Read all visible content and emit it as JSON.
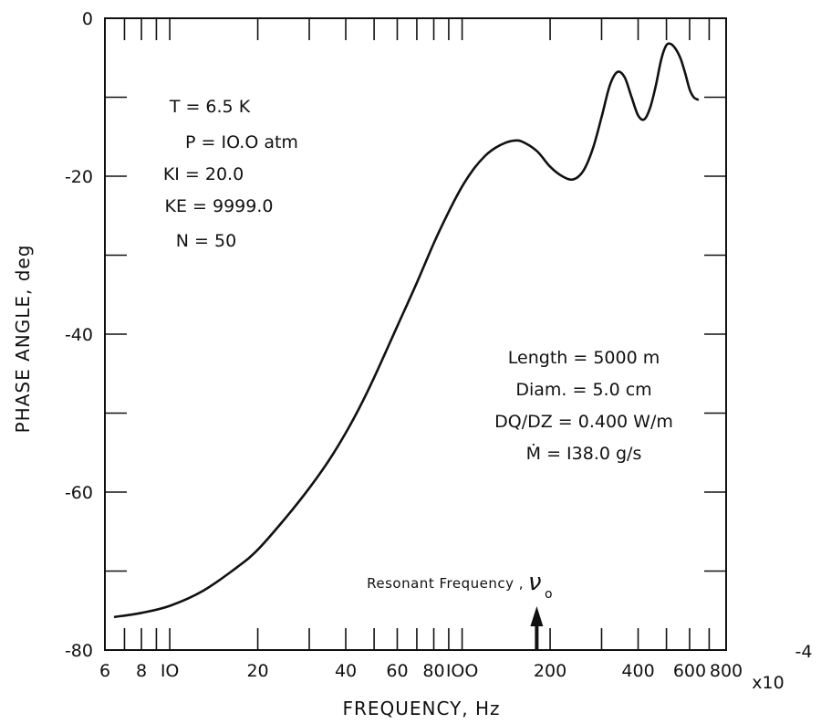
{
  "chart_data": {
    "type": "line",
    "title": "",
    "xlabel": "FREQUENCY, Hz",
    "ylabel": "PHASE ANGLE, deg",
    "x_scale": "log",
    "x_multiplier_label": "x10",
    "x_multiplier_exponent": "-4",
    "xlim": [
      6,
      800
    ],
    "ylim": [
      -80,
      0
    ],
    "x_tick_values": [
      6,
      8,
      10,
      20,
      40,
      60,
      80,
      100,
      200,
      400,
      600,
      800
    ],
    "x_tick_labels": [
      "6",
      "8",
      "IO",
      "20",
      "40",
      "60",
      "80",
      "IOO",
      "200",
      "400",
      "600",
      "800"
    ],
    "x_minor_ticks": [
      7,
      9,
      30,
      50,
      70,
      90,
      300,
      500,
      700
    ],
    "y_tick_values": [
      0,
      -20,
      -40,
      -60,
      -80
    ],
    "y_tick_labels": [
      "0",
      "-20",
      "-40",
      "-60",
      "-80"
    ],
    "y_minor_ticks": [
      -10,
      -30,
      -50,
      -70
    ],
    "grid": false,
    "series": [
      {
        "x": [
          6.5,
          8,
          10,
          13,
          17,
          20,
          25,
          30,
          35,
          40,
          45,
          50,
          60,
          70,
          80,
          90,
          100,
          110,
          120,
          130,
          140,
          150,
          160,
          180,
          200,
          220,
          240,
          260,
          280,
          300,
          320,
          340,
          360,
          380,
          400,
          420,
          440,
          460,
          480,
          500,
          520,
          540,
          560,
          580,
          600,
          620,
          640
        ],
        "y": [
          -75.8,
          -75.3,
          -74.4,
          -72.5,
          -69.5,
          -67.3,
          -63.2,
          -59.5,
          -56.0,
          -52.5,
          -49.0,
          -45.5,
          -39.0,
          -33.5,
          -28.5,
          -24.5,
          -21.3,
          -19.0,
          -17.4,
          -16.4,
          -15.8,
          -15.5,
          -15.6,
          -16.8,
          -18.8,
          -20.0,
          -20.4,
          -19.3,
          -16.5,
          -12.5,
          -8.5,
          -6.8,
          -7.5,
          -10.0,
          -12.3,
          -12.8,
          -11.3,
          -8.5,
          -5.2,
          -3.4,
          -3.3,
          -4.0,
          -5.2,
          -7.0,
          -9.0,
          -10.0,
          -10.3
        ]
      }
    ],
    "annotations": {
      "conditions": [
        "T = 6.5 K",
        "P = IO.O atm",
        "KI = 20.0",
        "KE = 9999.0",
        "N = 50"
      ],
      "pipe": [
        "Length = 5000 m",
        "Diam. = 5.0 cm",
        "DQ/DZ = 0.400 W/m",
        "Ṁ = I38.0 g/s"
      ],
      "resonance_label": "Resonant  Frequency ,",
      "resonance_symbol": "ν",
      "resonance_subscript": "o",
      "resonance_x": 180
    }
  }
}
